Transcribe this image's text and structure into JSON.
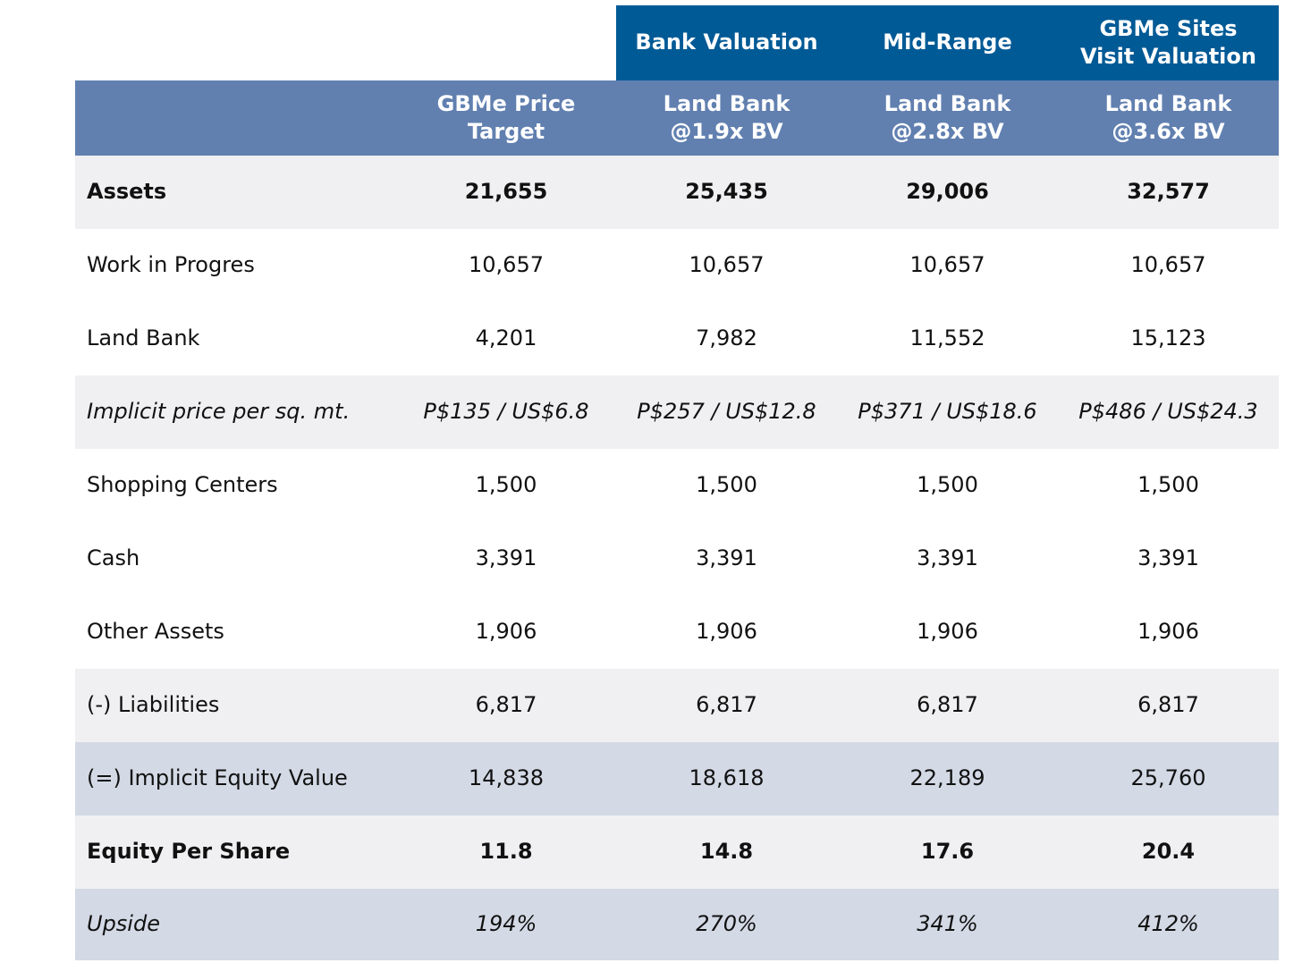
{
  "table": {
    "top_headers": [
      "Bank Valuation",
      "Mid-Range",
      "GBMe Sites Visit Valuation"
    ],
    "sub_headers": [
      "GBMe Price Target",
      "Land Bank @1.9x BV",
      "Land Bank @2.8x BV",
      "Land Bank @3.6x BV"
    ],
    "rows": [
      [
        "Assets",
        "21,655",
        "25,435",
        "29,006",
        "32,577"
      ],
      [
        "Work in Progres",
        "10,657",
        "10,657",
        "10,657",
        "10,657"
      ],
      [
        "Land Bank",
        "4,201",
        "7,982",
        "11,552",
        "15,123"
      ],
      [
        "Implicit price per sq. mt.",
        "P$135 / US$6.8",
        "P$257 / US$12.8",
        "P$371 / US$18.6",
        "P$486 / US$24.3"
      ],
      [
        "Shopping Centers",
        "1,500",
        "1,500",
        "1,500",
        "1,500"
      ],
      [
        "Cash",
        "3,391",
        "3,391",
        "3,391",
        "3,391"
      ],
      [
        "Other Assets",
        "1,906",
        "1,906",
        "1,906",
        "1,906"
      ],
      [
        "(-) Liabilities",
        "6,817",
        "6,817",
        "6,817",
        "6,817"
      ],
      [
        "(=) Implicit Equity Value",
        "14,838",
        "18,618",
        "22,189",
        "25,760"
      ],
      [
        "Equity Per Share",
        "11.8",
        "14.8",
        "17.6",
        "20.4"
      ],
      [
        "Upside",
        "194%",
        "270%",
        "341%",
        "412%"
      ]
    ]
  }
}
